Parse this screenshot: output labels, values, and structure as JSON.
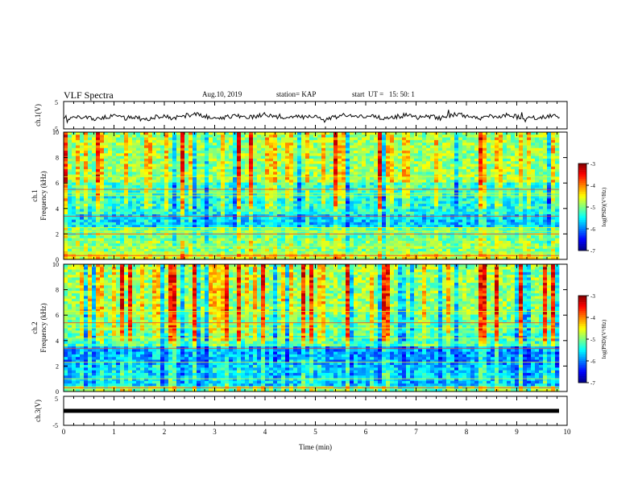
{
  "header": {
    "title": "VLF Spectra",
    "date": "Aug.10, 2019",
    "station": "station= KAP",
    "start": "start  UT =   15: 50: 1"
  },
  "chart_data": [
    {
      "type": "line",
      "panel": "ch1-waveform",
      "ylabel": "ch.1(V)",
      "ylim": [
        -5,
        5
      ],
      "yticks": [
        "5",
        "-5"
      ],
      "xlim": [
        0,
        10
      ],
      "series": [
        {
          "values": [
            -0.8,
            -1.2,
            -0.5,
            -1.6,
            -0.9,
            -0.3,
            -1.1,
            -0.6,
            -1.8,
            -0.7,
            -0.4,
            -1.0,
            -0.2,
            0.4,
            -0.5,
            -1.3,
            -0.6,
            -0.1,
            -0.9,
            -0.4,
            0.3,
            -0.7,
            -1.1,
            -0.3,
            -0.8,
            -0.5,
            -1.4,
            -0.6,
            0.2,
            -0.9,
            -0.2,
            -0.6,
            -1.2,
            -0.4,
            0.1,
            -0.8,
            -0.3,
            -1.0,
            -0.5,
            0.5,
            -0.7,
            -1.3,
            -0.2,
            -0.6,
            0.3,
            -0.9,
            -0.4,
            -1.1,
            -0.1,
            -0.7
          ]
        }
      ],
      "color": "#000000"
    },
    {
      "type": "heatmap",
      "panel": "ch1-spectrogram",
      "ylabel": "ch.1\nFrequency (kHz)",
      "yticks": [
        "0",
        "2",
        "4",
        "6",
        "8",
        "10"
      ],
      "ylim": [
        0,
        10
      ],
      "xlim": [
        0,
        10
      ],
      "colorbar": {
        "label": "log(PSD)(V²/Hz)",
        "ticks": [
          "-3",
          "-4",
          "-5",
          "-6",
          "-7"
        ],
        "range": [
          -7,
          -3
        ]
      },
      "frequency_profile": [
        {
          "from": 0.0,
          "to": 0.5,
          "level": -4.6
        },
        {
          "from": 0.5,
          "to": 1.5,
          "level": -5.0
        },
        {
          "from": 1.5,
          "to": 2.5,
          "level": -5.1
        },
        {
          "from": 2.5,
          "to": 3.5,
          "level": -5.7
        },
        {
          "from": 3.5,
          "to": 5.0,
          "level": -5.4
        },
        {
          "from": 5.0,
          "to": 6.0,
          "level": -5.3
        },
        {
          "from": 6.0,
          "to": 10.0,
          "level": -4.9
        }
      ],
      "narrowband_lines_khz": [
        0.3,
        0.5,
        1.0,
        2.0,
        2.2,
        2.5,
        3.4,
        5.0,
        5.2,
        5.5,
        6.5
      ]
    },
    {
      "type": "heatmap",
      "panel": "ch2-spectrogram",
      "ylabel": "ch.2\nFrequency (kHz)",
      "yticks": [
        "0",
        "2",
        "4",
        "6",
        "8",
        "10"
      ],
      "ylim": [
        0,
        10
      ],
      "xlim": [
        0,
        10
      ],
      "colorbar": {
        "label": "log(PSD)(V²/Hz)",
        "ticks": [
          "-3",
          "-4",
          "-5",
          "-6",
          "-7"
        ],
        "range": [
          -7,
          -3
        ]
      },
      "frequency_profile": [
        {
          "from": 0.0,
          "to": 0.5,
          "level": -5.0
        },
        {
          "from": 0.5,
          "to": 2.0,
          "level": -5.7
        },
        {
          "from": 2.0,
          "to": 3.5,
          "level": -5.9
        },
        {
          "from": 3.5,
          "to": 4.5,
          "level": -5.2
        },
        {
          "from": 4.5,
          "to": 6.0,
          "level": -5.1
        },
        {
          "from": 6.0,
          "to": 10.0,
          "level": -4.9
        }
      ],
      "narrowband_lines_khz": [
        0.3,
        1.0,
        2.3,
        3.4,
        4.2,
        5.0,
        5.4,
        6.3
      ]
    },
    {
      "type": "line",
      "panel": "ch3-waveform",
      "ylabel": "ch.3(V)",
      "ylim": [
        -5,
        5
      ],
      "yticks": [
        "5",
        "-5"
      ],
      "xlim": [
        0,
        10
      ],
      "series": [
        {
          "values": [
            0,
            0
          ]
        }
      ],
      "color": "#000000"
    }
  ],
  "xaxis": {
    "label": "Time  (min)",
    "ticks": [
      "0",
      "1",
      "2",
      "3",
      "4",
      "5",
      "6",
      "7",
      "8",
      "9",
      "10"
    ]
  }
}
